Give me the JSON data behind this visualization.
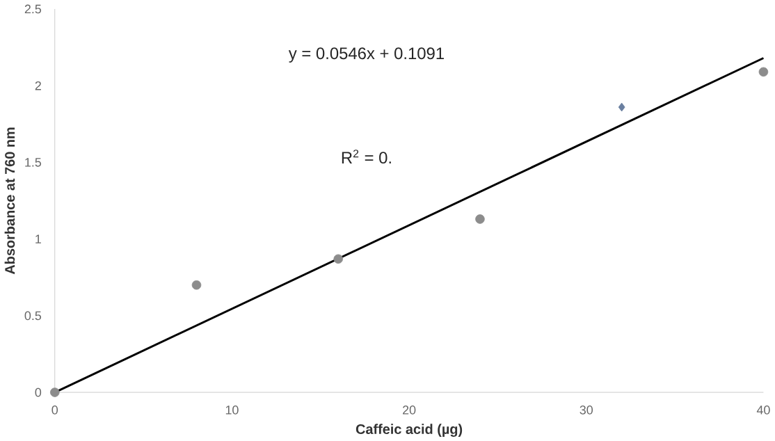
{
  "chart_data": {
    "type": "scatter",
    "xlabel": "Caffeic acid (µg)",
    "ylabel": "Absorbance at 760 nm",
    "xlim": [
      0,
      40
    ],
    "ylim": [
      0,
      2.5
    ],
    "xticks": [
      0,
      10,
      20,
      30,
      40
    ],
    "yticks": [
      0,
      0.5,
      1,
      1.5,
      2,
      2.5
    ],
    "grid": false,
    "series": [
      {
        "marker": "circle",
        "color": "#8c8c8c",
        "x": [
          0,
          8,
          16,
          24,
          40
        ],
        "values": [
          0,
          0.7,
          0.87,
          1.13,
          2.09
        ]
      },
      {
        "type": "scatter",
        "marker": "diamond",
        "color": "#6a7fa0",
        "x": [
          32
        ],
        "values": [
          1.86
        ]
      },
      {
        "type": "line",
        "color": "#000000",
        "marker": "none",
        "x": [
          0,
          40
        ],
        "values": [
          0,
          2.18
        ]
      }
    ],
    "annotations": [
      "y = 0.0546x + 0.1091",
      "R$^{2}$ = 0."
    ]
  }
}
